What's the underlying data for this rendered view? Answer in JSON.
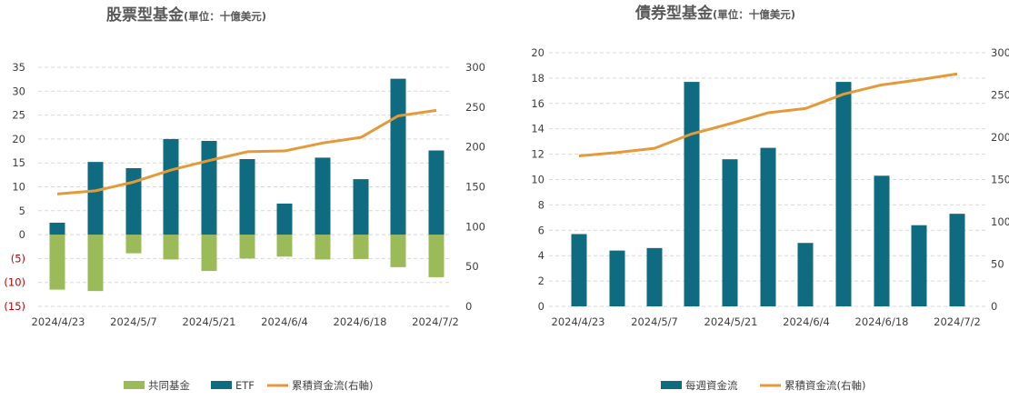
{
  "colors": {
    "etf": "#0f6b80",
    "mutual": "#9bbb59",
    "line": "#e59a3a",
    "negative_tick": "#c00000"
  },
  "chart_data": [
    {
      "type": "bar",
      "title": "股票型基金",
      "unit": "(單位：十億美元)",
      "xlabel": "",
      "ylabel": "",
      "x_tick_labels": [
        "2024/4/23",
        "2024/5/7",
        "2024/5/21",
        "2024/6/4",
        "2024/6/18",
        "2024/7/2"
      ],
      "ylim": [
        -15,
        35
      ],
      "y_ticks": [
        "35",
        "30",
        "25",
        "20",
        "15",
        "10",
        "5",
        "0",
        "(5)",
        "(10)",
        "(15)"
      ],
      "y2lim": [
        0,
        300
      ],
      "y2_ticks": [
        "300",
        "250",
        "200",
        "150",
        "100",
        "50",
        "0"
      ],
      "grid": true,
      "legend_position": "bottom",
      "series": [
        {
          "name": "共同基金",
          "kind": "bar",
          "axis": "left",
          "color": "#9bbb59",
          "values": [
            -11.5,
            -11.8,
            -3.9,
            -5.2,
            -7.6,
            -5.0,
            -4.6,
            -5.2,
            -5.1,
            -6.8,
            -8.9
          ]
        },
        {
          "name": "ETF",
          "kind": "bar",
          "axis": "left",
          "color": "#0f6b80",
          "values": [
            2.5,
            15.2,
            13.9,
            20.0,
            19.6,
            15.8,
            6.5,
            16.1,
            11.6,
            32.6,
            17.6
          ]
        },
        {
          "name": "累積資金流(右軸)",
          "kind": "line",
          "axis": "right",
          "color": "#e59a3a",
          "values": [
            141,
            145,
            156,
            171,
            183,
            194,
            195,
            205,
            212,
            239,
            246
          ]
        }
      ]
    },
    {
      "type": "bar",
      "title": "債券型基金",
      "unit": "(單位：十億美元)",
      "xlabel": "",
      "ylabel": "",
      "x_tick_labels": [
        "2024/4/23",
        "2024/5/7",
        "2024/5/21",
        "2024/6/4",
        "2024/6/18",
        "2024/7/2"
      ],
      "ylim": [
        0,
        20
      ],
      "y_ticks": [
        "20",
        "18",
        "16",
        "14",
        "12",
        "10",
        "8",
        "6",
        "4",
        "2",
        "0"
      ],
      "y2lim": [
        0,
        300
      ],
      "y2_ticks": [
        "300",
        "250",
        "200",
        "150",
        "100",
        "50",
        "0"
      ],
      "grid": true,
      "legend_position": "bottom",
      "series": [
        {
          "name": "每週資金流",
          "kind": "bar",
          "axis": "left",
          "color": "#0f6b80",
          "values": [
            5.7,
            4.4,
            4.6,
            17.7,
            11.6,
            12.5,
            5.0,
            17.7,
            10.3,
            6.4,
            7.3
          ]
        },
        {
          "name": "累積資金流(右軸)",
          "kind": "line",
          "axis": "right",
          "color": "#e59a3a",
          "values": [
            178,
            182,
            187,
            204,
            216,
            229,
            234,
            251,
            262,
            268,
            275
          ]
        }
      ]
    }
  ]
}
